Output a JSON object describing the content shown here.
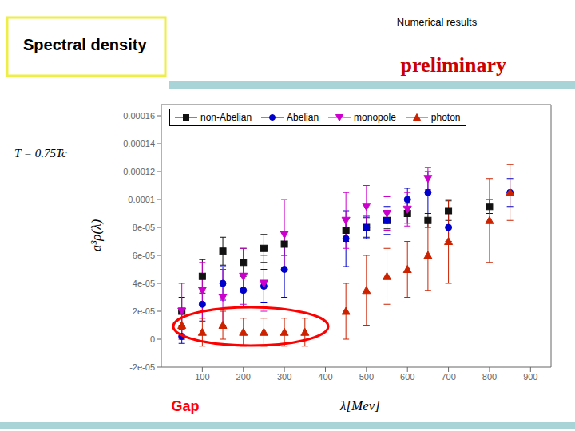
{
  "chart_data": {
    "type": "scatter",
    "title": "Spectral density",
    "subtitle": "Numerical results",
    "annotations": [
      {
        "text": "preliminary",
        "color": "#cc0000"
      },
      {
        "text": "T = 0.75Tc"
      },
      {
        "text": "Gap",
        "color": "red"
      }
    ],
    "xlabel": "λ[Mev]",
    "ylabel": "a³ρ(λ)",
    "xlim": [
      0,
      950
    ],
    "ylim": [
      -2e-05,
      0.000168
    ],
    "xticks": [
      100,
      200,
      300,
      400,
      500,
      600,
      700,
      800,
      900
    ],
    "yticks": [
      {
        "value": -2e-05,
        "label": "-2e-05"
      },
      0,
      {
        "value": 2e-05,
        "label": "2e-05"
      },
      {
        "value": 4e-05,
        "label": "4e-05"
      },
      {
        "value": 6e-05,
        "label": "6e-05"
      },
      {
        "value": 8e-05,
        "label": "8e-05"
      },
      {
        "value": 0.0001,
        "label": "0.0001"
      },
      {
        "value": 0.00012,
        "label": "0.00012"
      },
      {
        "value": 0.00014,
        "label": "0.00014"
      },
      {
        "value": 0.00016,
        "label": "0.00016"
      }
    ],
    "grid": false,
    "legend": "upper left",
    "series": [
      {
        "name": "non-Abelian",
        "color": "#111111",
        "marker": "square",
        "x": [
          50,
          100,
          150,
          200,
          250,
          300,
          450,
          500,
          550,
          600,
          650,
          700,
          800
        ],
        "values": [
          2e-05,
          4.5e-05,
          6.3e-05,
          5.5e-05,
          6.5e-05,
          6.8e-05,
          7.8e-05,
          8e-05,
          8.5e-05,
          9e-05,
          8.5e-05,
          9.2e-05,
          9.5e-05
        ],
        "yerr": [
          1e-05,
          1.2e-05,
          1e-05,
          1e-05,
          1e-05,
          8e-06,
          8e-06,
          7e-06,
          6e-06,
          7e-06,
          5e-06,
          7e-06,
          5e-06
        ]
      },
      {
        "name": "Abelian",
        "color": "#0000cc",
        "marker": "circle",
        "x": [
          50,
          100,
          150,
          200,
          250,
          300,
          450,
          500,
          550,
          600,
          650,
          700,
          850
        ],
        "values": [
          2e-06,
          2.5e-05,
          4e-05,
          3.5e-05,
          3.8e-05,
          5e-05,
          7.2e-05,
          8e-05,
          8.5e-05,
          0.0001,
          0.000105,
          8e-05,
          0.000105
        ],
        "yerr": [
          5e-06,
          1.2e-05,
          1.2e-05,
          1.2e-05,
          1.2e-05,
          2e-05,
          2e-05,
          8e-06,
          1e-05,
          8e-06,
          1.5e-05,
          1e-05,
          1e-05
        ]
      },
      {
        "name": "monopole",
        "color": "#cc00cc",
        "marker": "triangle_down",
        "x": [
          50,
          100,
          150,
          200,
          250,
          300,
          450,
          500,
          550,
          600,
          650
        ],
        "values": [
          2e-05,
          3.5e-05,
          3e-05,
          4.5e-05,
          4e-05,
          7.5e-05,
          8.5e-05,
          9.5e-05,
          9e-05,
          9.3e-05,
          0.000115
        ],
        "yerr": [
          2e-05,
          2e-05,
          2e-05,
          2e-05,
          2e-05,
          2.5e-05,
          2e-05,
          1.5e-05,
          1.2e-05,
          1.2e-05,
          8e-06
        ]
      },
      {
        "name": "photon",
        "color": "#cc2200",
        "marker": "triangle_up",
        "x": [
          50,
          100,
          150,
          200,
          250,
          300,
          350,
          450,
          500,
          550,
          600,
          650,
          700,
          800,
          850
        ],
        "values": [
          1e-05,
          5e-06,
          1e-05,
          5e-06,
          5e-06,
          5e-06,
          5e-06,
          2e-05,
          3.5e-05,
          4.5e-05,
          5e-05,
          6e-05,
          7e-05,
          8.5e-05,
          0.000105
        ],
        "yerr": [
          1e-05,
          1e-05,
          1e-05,
          1e-05,
          1e-05,
          1e-05,
          1e-05,
          2e-05,
          2.5e-05,
          2e-05,
          2e-05,
          2.5e-05,
          3e-05,
          3e-05,
          2e-05
        ]
      }
    ]
  }
}
